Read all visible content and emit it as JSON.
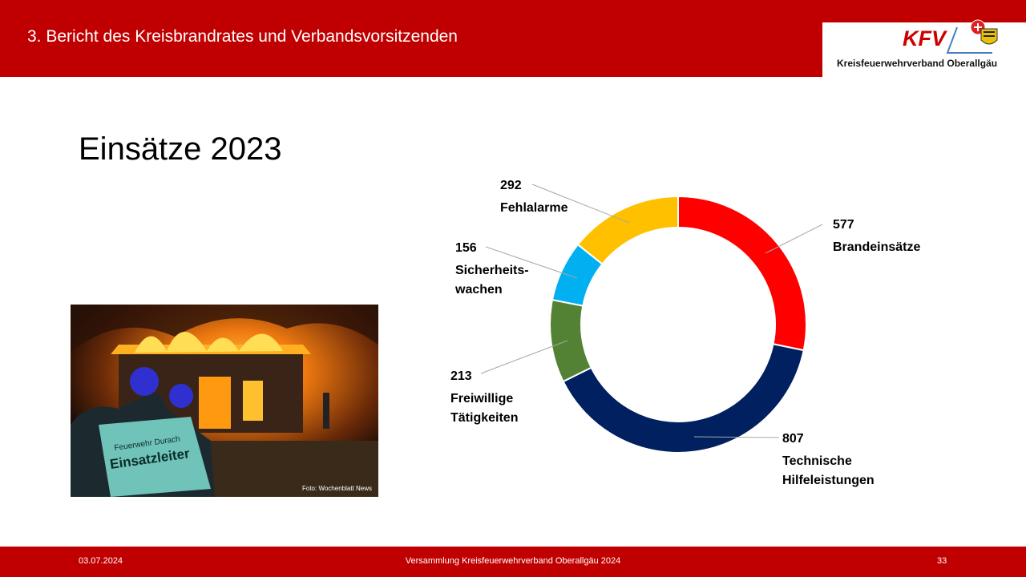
{
  "header": {
    "title": "3. Bericht des Kreisbrandrates und Verbandsvorsitzenden",
    "logo_text": "KFV",
    "logo_caption": "Kreisfeuerwehrverband  Oberallgäu"
  },
  "slide": {
    "heading": "Einsätze 2023",
    "photo_credit": "Foto: Wochenblatt  News"
  },
  "chart_data": {
    "type": "pie",
    "style": "donut",
    "title": "",
    "series": [
      {
        "value": 577,
        "label": [
          "Brandeinsätze"
        ],
        "color": "#ff0000"
      },
      {
        "value": 807,
        "label": [
          "Technische",
          "Hilfeleistungen"
        ],
        "color": "#002060"
      },
      {
        "value": 213,
        "label": [
          "Freiwillige",
          "Tätigkeiten"
        ],
        "color": "#548235"
      },
      {
        "value": 156,
        "label": [
          "Sicherheits-",
          "wachen"
        ],
        "color": "#00b0f0"
      },
      {
        "value": 292,
        "label": [
          "Fehlalarme"
        ],
        "color": "#ffc000"
      }
    ]
  },
  "footer": {
    "date": "03.07.2024",
    "center": "Versammlung Kreisfeuerwehrverband Oberallgäu 2024",
    "page": "33"
  },
  "colors": {
    "brand_red": "#c00000"
  }
}
